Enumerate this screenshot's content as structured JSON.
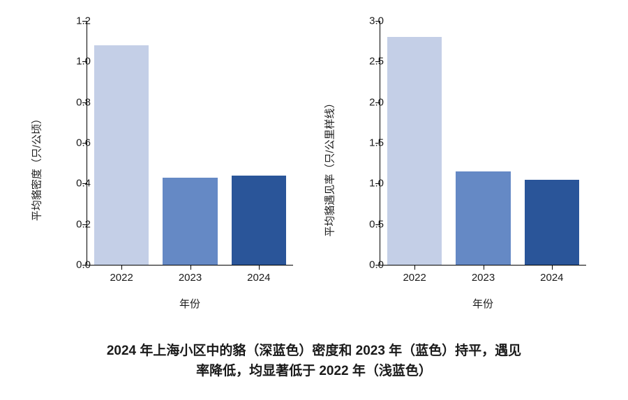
{
  "background_color": "#ffffff",
  "text_color": "#1a1a1a",
  "axis_color": "#000000",
  "left_chart": {
    "type": "bar",
    "ylabel": "平均貉密度（只/公顷）",
    "xlabel": "年份",
    "categories": [
      "2022",
      "2023",
      "2024"
    ],
    "values": [
      1.08,
      0.43,
      0.44
    ],
    "bar_colors": [
      "#c4cfe7",
      "#6589c5",
      "#2a5599"
    ],
    "ylim": [
      0.0,
      1.2
    ],
    "yticks": [
      0.0,
      0.2,
      0.4,
      0.6,
      0.8,
      1.0,
      1.2
    ],
    "ytick_labels": [
      "0.0",
      "0.2",
      "0.4",
      "0.6",
      "0.8",
      "1.0",
      "1.2"
    ],
    "bar_width": 0.8,
    "label_fontsize": 15,
    "tick_fontsize": 15
  },
  "right_chart": {
    "type": "bar",
    "ylabel": "平均貉遇见率（只/公里样线）",
    "xlabel": "年份",
    "categories": [
      "2022",
      "2023",
      "2024"
    ],
    "values": [
      2.8,
      1.15,
      1.05
    ],
    "bar_colors": [
      "#c4cfe7",
      "#6589c5",
      "#2a5599"
    ],
    "ylim": [
      0.0,
      3.0
    ],
    "yticks": [
      0.0,
      0.5,
      1.0,
      1.5,
      2.0,
      2.5,
      3.0
    ],
    "ytick_labels": [
      "0.0",
      "0.5",
      "1.0",
      "1.5",
      "2.0",
      "2.5",
      "3.0"
    ],
    "bar_width": 0.8,
    "label_fontsize": 15,
    "tick_fontsize": 15
  },
  "caption_line1": "2024 年上海小区中的貉（深蓝色）密度和 2023 年（蓝色）持平，遇见",
  "caption_line2": "率降低，均显著低于 2022 年（浅蓝色）"
}
